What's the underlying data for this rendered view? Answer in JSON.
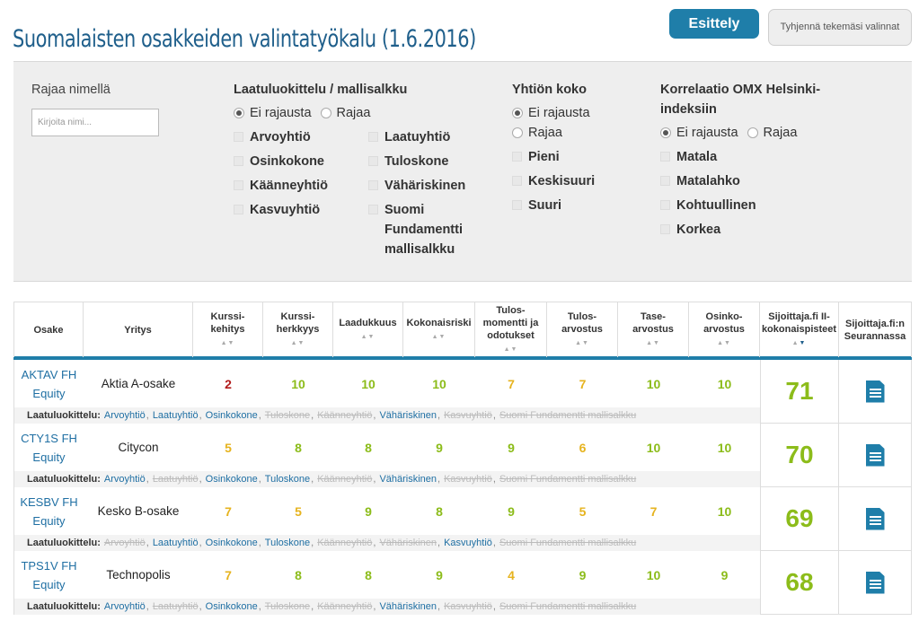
{
  "header": {
    "title": "Suomalaisten osakkeiden valintatyökalu (1.6.2016)",
    "presentation_button": "Esittely",
    "clear_button": "Tyhjennä tekemäsi valinnat"
  },
  "filters": {
    "name": {
      "heading": "Rajaa nimellä",
      "placeholder": "Kirjoita nimi..."
    },
    "quality": {
      "heading": "Laatuluokittelu / mallisalkku",
      "radio": [
        "Ei rajausta",
        "Rajaa"
      ],
      "selected": 0,
      "left": [
        "Arvoyhtiö",
        "Osinkokone",
        "Käänneyhtiö",
        "Kasvuyhtiö"
      ],
      "right": [
        "Laatuyhtiö",
        "Tuloskone",
        "Vähäriskinen",
        "Suomi Fundamentti mallisalkku"
      ]
    },
    "size": {
      "heading": "Yhtiön koko",
      "radio": [
        "Ei rajausta",
        "Rajaa"
      ],
      "selected": 0,
      "options": [
        "Pieni",
        "Keskisuuri",
        "Suuri"
      ]
    },
    "correlation": {
      "heading": "Korrelaatio OMX Helsinki-indeksiin",
      "radio": [
        "Ei rajausta",
        "Rajaa"
      ],
      "selected": 0,
      "options": [
        "Matala",
        "Matalahko",
        "Kohtuullinen",
        "Korkea"
      ]
    }
  },
  "table": {
    "columns": [
      "Osake",
      "Yritys",
      "Kurssi-kehitys",
      "Kurssi-herkkyys",
      "Laadukkuus",
      "Kokonaisriski",
      "Tulos-momentti ja odotukset",
      "Tulos-arvostus",
      "Tase-arvostus",
      "Osinko-arvostus",
      "Sijoittaja.fi II-kokonaispisteet",
      "Sijoittaja.fi:n Seurannassa"
    ],
    "quality_label": "Laatuluokittelu:",
    "rows": [
      {
        "ticker": "AKTAV FH",
        "ticker2": "Equity",
        "company": "Aktia A-osake",
        "scores": [
          "2",
          "10",
          "10",
          "10",
          "7",
          "7",
          "10",
          "10"
        ],
        "score_colors": [
          "red",
          "green",
          "green",
          "green",
          "yellow",
          "yellow",
          "green",
          "green"
        ],
        "total": "71",
        "tags": [
          [
            "Arvoyhtiö",
            true
          ],
          [
            "Laatuyhtiö",
            true
          ],
          [
            "Osinkokone",
            true
          ],
          [
            "Tuloskone",
            false
          ],
          [
            "Käänneyhtiö",
            false
          ],
          [
            "Vähäriskinen",
            true
          ],
          [
            "Kasvuyhtiö",
            false
          ],
          [
            "Suomi Fundamentti mallisalkku",
            false
          ]
        ]
      },
      {
        "ticker": "CTY1S FH",
        "ticker2": "Equity",
        "company": "Citycon",
        "scores": [
          "5",
          "8",
          "8",
          "9",
          "9",
          "6",
          "10",
          "10"
        ],
        "score_colors": [
          "yellow",
          "green",
          "green",
          "green",
          "green",
          "yellow",
          "green",
          "green"
        ],
        "total": "70",
        "tags": [
          [
            "Arvoyhtiö",
            true
          ],
          [
            "Laatuyhtiö",
            false
          ],
          [
            "Osinkokone",
            true
          ],
          [
            "Tuloskone",
            true
          ],
          [
            "Käänneyhtiö",
            false
          ],
          [
            "Vähäriskinen",
            true
          ],
          [
            "Kasvuyhtiö",
            false
          ],
          [
            "Suomi Fundamentti mallisalkku",
            false
          ]
        ]
      },
      {
        "ticker": "KESBV FH",
        "ticker2": "Equity",
        "company": "Kesko B-osake",
        "scores": [
          "7",
          "5",
          "9",
          "8",
          "9",
          "5",
          "7",
          "10"
        ],
        "score_colors": [
          "yellow",
          "yellow",
          "green",
          "green",
          "green",
          "yellow",
          "yellow",
          "green"
        ],
        "total": "69",
        "tags": [
          [
            "Arvoyhtiö",
            false
          ],
          [
            "Laatuyhtiö",
            true
          ],
          [
            "Osinkokone",
            true
          ],
          [
            "Tuloskone",
            true
          ],
          [
            "Käänneyhtiö",
            false
          ],
          [
            "Vähäriskinen",
            false
          ],
          [
            "Kasvuyhtiö",
            true
          ],
          [
            "Suomi Fundamentti mallisalkku",
            false
          ]
        ]
      },
      {
        "ticker": "TPS1V FH",
        "ticker2": "Equity",
        "company": "Technopolis",
        "scores": [
          "7",
          "8",
          "8",
          "9",
          "4",
          "9",
          "10",
          "9"
        ],
        "score_colors": [
          "yellow",
          "green",
          "green",
          "green",
          "yellow",
          "green",
          "green",
          "green"
        ],
        "total": "68",
        "tags": [
          [
            "Arvoyhtiö",
            true
          ],
          [
            "Laatuyhtiö",
            false
          ],
          [
            "Osinkokone",
            true
          ],
          [
            "Tuloskone",
            false
          ],
          [
            "Käänneyhtiö",
            false
          ],
          [
            "Vähäriskinen",
            true
          ],
          [
            "Kasvuyhtiö",
            false
          ],
          [
            "Suomi Fundamentti mallisalkku",
            false
          ]
        ]
      }
    ]
  }
}
